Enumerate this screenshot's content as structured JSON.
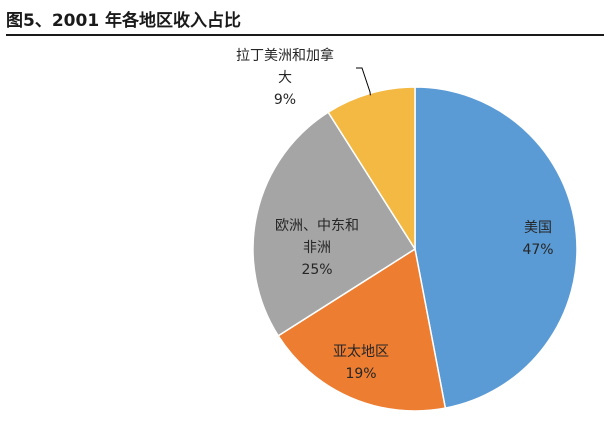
{
  "figure": {
    "title": "图5、2001 年各地区收入占比"
  },
  "chart_data": {
    "type": "pie",
    "title": "图5、2001 年各地区收入占比",
    "slices": [
      {
        "name": "美国",
        "label_lines": [
          "美国"
        ],
        "value": 47,
        "value_label": "47%",
        "color": "#5B9BD5"
      },
      {
        "name": "亚太地区",
        "label_lines": [
          "亚太地区"
        ],
        "value": 19,
        "value_label": "19%",
        "color": "#ED7D31"
      },
      {
        "name": "欧洲、中东和非洲",
        "label_lines": [
          "欧洲、中东和",
          "非洲"
        ],
        "value": 25,
        "value_label": "25%",
        "color": "#A5A5A5"
      },
      {
        "name": "拉丁美洲和加拿大",
        "label_lines": [
          "拉丁美洲和加拿",
          "大"
        ],
        "value": 9,
        "value_label": "9%",
        "color": "#F4B942"
      }
    ],
    "start": "12 o'clock",
    "direction": "clockwise",
    "legend": "none",
    "label_position": "inside (small slice label outside with leader line)"
  }
}
